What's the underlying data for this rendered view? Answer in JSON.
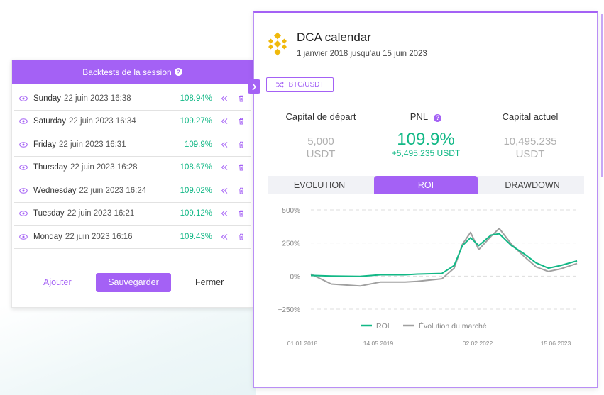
{
  "session": {
    "title": "Backtests de la session",
    "help": "?",
    "rows": [
      {
        "name": "Sunday",
        "date": "22 juin 2023 16:38",
        "pct": "108.94%"
      },
      {
        "name": "Saturday",
        "date": "22 juin 2023 16:34",
        "pct": "109.27%"
      },
      {
        "name": "Friday",
        "date": "22 juin 2023 16:31",
        "pct": "109.9%"
      },
      {
        "name": "Thursday",
        "date": "22 juin 2023 16:28",
        "pct": "108.67%"
      },
      {
        "name": "Wednesday",
        "date": "22 juin 2023 16:24",
        "pct": "109.02%"
      },
      {
        "name": "Tuesday",
        "date": "22 juin 2023 16:21",
        "pct": "109.12%"
      },
      {
        "name": "Monday",
        "date": "22 juin 2023 16:16",
        "pct": "109.43%"
      }
    ],
    "add_label": "Ajouter",
    "save_label": "Sauvegarder",
    "close_label": "Fermer"
  },
  "dca": {
    "title": "DCA calendar",
    "subtitle": "1 janvier 2018 jusqu'au 15 juin 2023",
    "pair": "BTC/USDT",
    "start_capital": {
      "label": "Capital de départ",
      "value": "5,000",
      "unit": "USDT"
    },
    "pnl": {
      "label": "PNL",
      "help": "?",
      "value": "109.9%",
      "abs": "+5,495.235 USDT"
    },
    "current_capital": {
      "label": "Capital actuel",
      "value": "10,495.235",
      "unit": "USDT"
    },
    "tabs": [
      "EVOLUTION",
      "ROI",
      "DRAWDOWN"
    ],
    "active_tab": "ROI"
  },
  "colors": {
    "accent": "#a461f5",
    "positive": "#12b886",
    "market": "#a0a0a0"
  },
  "chart_data": {
    "type": "line",
    "y_ticks": [
      "500%",
      "250%",
      "0%",
      "−250%"
    ],
    "y_tick_values": [
      500,
      250,
      0,
      -250
    ],
    "x_ticks": [
      "01.01.2018",
      "14.05.2019",
      "02.02.2022",
      "15.06.2023"
    ],
    "ylim": [
      -250,
      500
    ],
    "series": [
      {
        "name": "ROI",
        "color": "#12b886",
        "x": [
          "2018-01",
          "2018-06",
          "2019-01",
          "2019-06",
          "2019-12",
          "2020-03",
          "2020-09",
          "2020-12",
          "2021-02",
          "2021-04",
          "2021-06",
          "2021-09",
          "2021-11",
          "2022-02",
          "2022-05",
          "2022-08",
          "2022-11",
          "2023-02",
          "2023-06"
        ],
        "y": [
          5,
          0,
          -2,
          10,
          10,
          15,
          20,
          80,
          230,
          290,
          230,
          310,
          320,
          230,
          170,
          100,
          60,
          80,
          115
        ]
      },
      {
        "name": "Évolution du marché",
        "color": "#a0a0a0",
        "x": [
          "2018-01",
          "2018-06",
          "2019-01",
          "2019-06",
          "2019-12",
          "2020-03",
          "2020-09",
          "2020-12",
          "2021-02",
          "2021-04",
          "2021-06",
          "2021-09",
          "2021-11",
          "2022-02",
          "2022-05",
          "2022-08",
          "2022-11",
          "2023-02",
          "2023-06"
        ],
        "y": [
          15,
          -60,
          -75,
          -45,
          -45,
          -40,
          -20,
          60,
          240,
          330,
          200,
          300,
          360,
          240,
          150,
          70,
          35,
          55,
          95
        ]
      }
    ]
  }
}
